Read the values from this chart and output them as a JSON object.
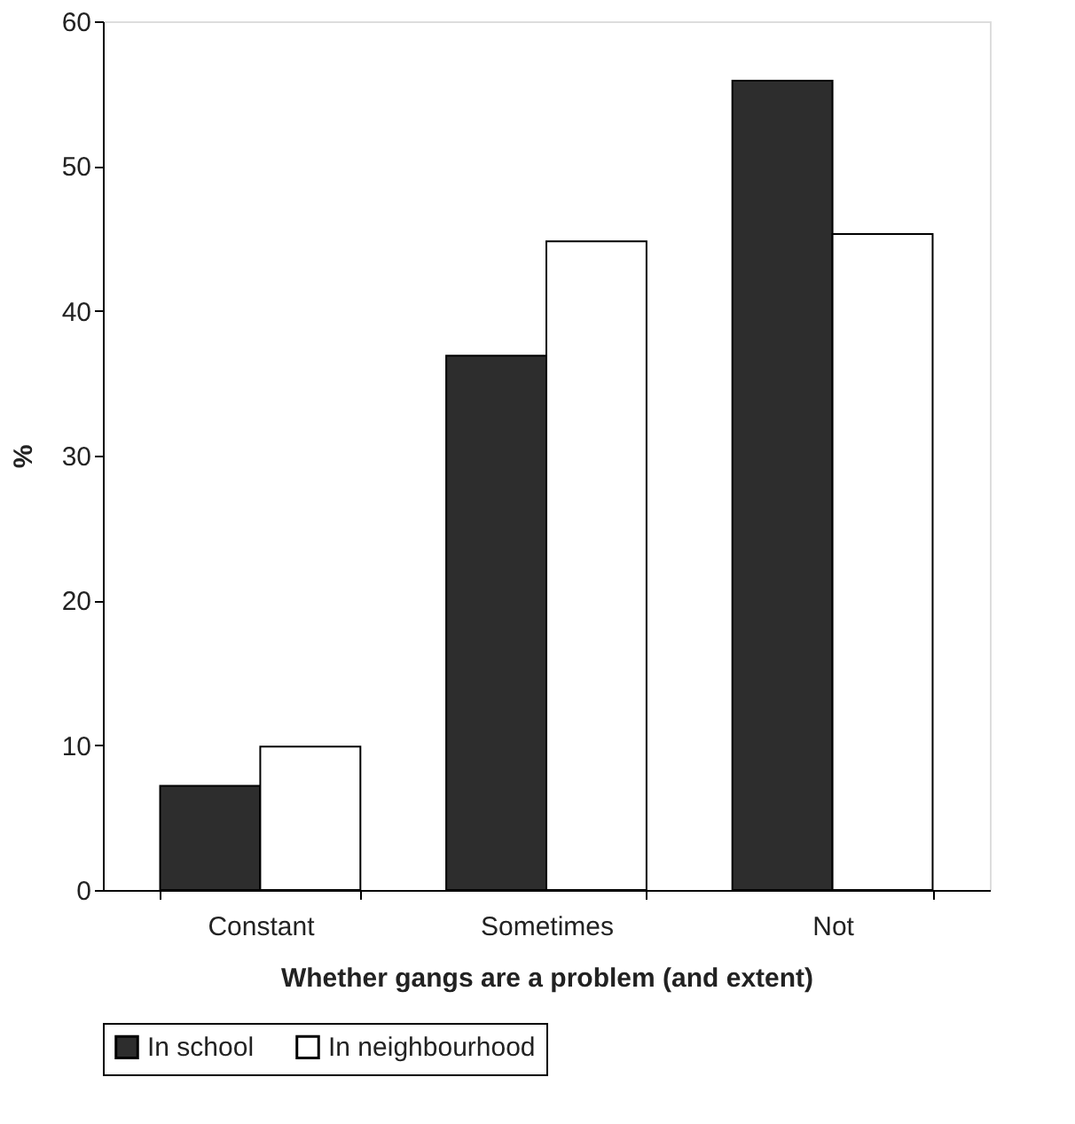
{
  "chart_data": {
    "type": "bar",
    "xlabel": "Whether gangs are a problem (and extent)",
    "ylabel": "%",
    "categories": [
      "Constant",
      "Sometimes",
      "Not"
    ],
    "series": [
      {
        "name": "In school",
        "color": "#2d2d2d",
        "values": [
          7.2,
          36.9,
          55.9
        ]
      },
      {
        "name": "In neighbourhood",
        "color": "#ffffff",
        "values": [
          9.9,
          44.8,
          45.3
        ]
      }
    ],
    "ylim": [
      0,
      60
    ],
    "yticks": [
      0,
      10,
      20,
      30,
      40,
      50,
      60
    ],
    "grid": false,
    "legend": "bottom"
  }
}
